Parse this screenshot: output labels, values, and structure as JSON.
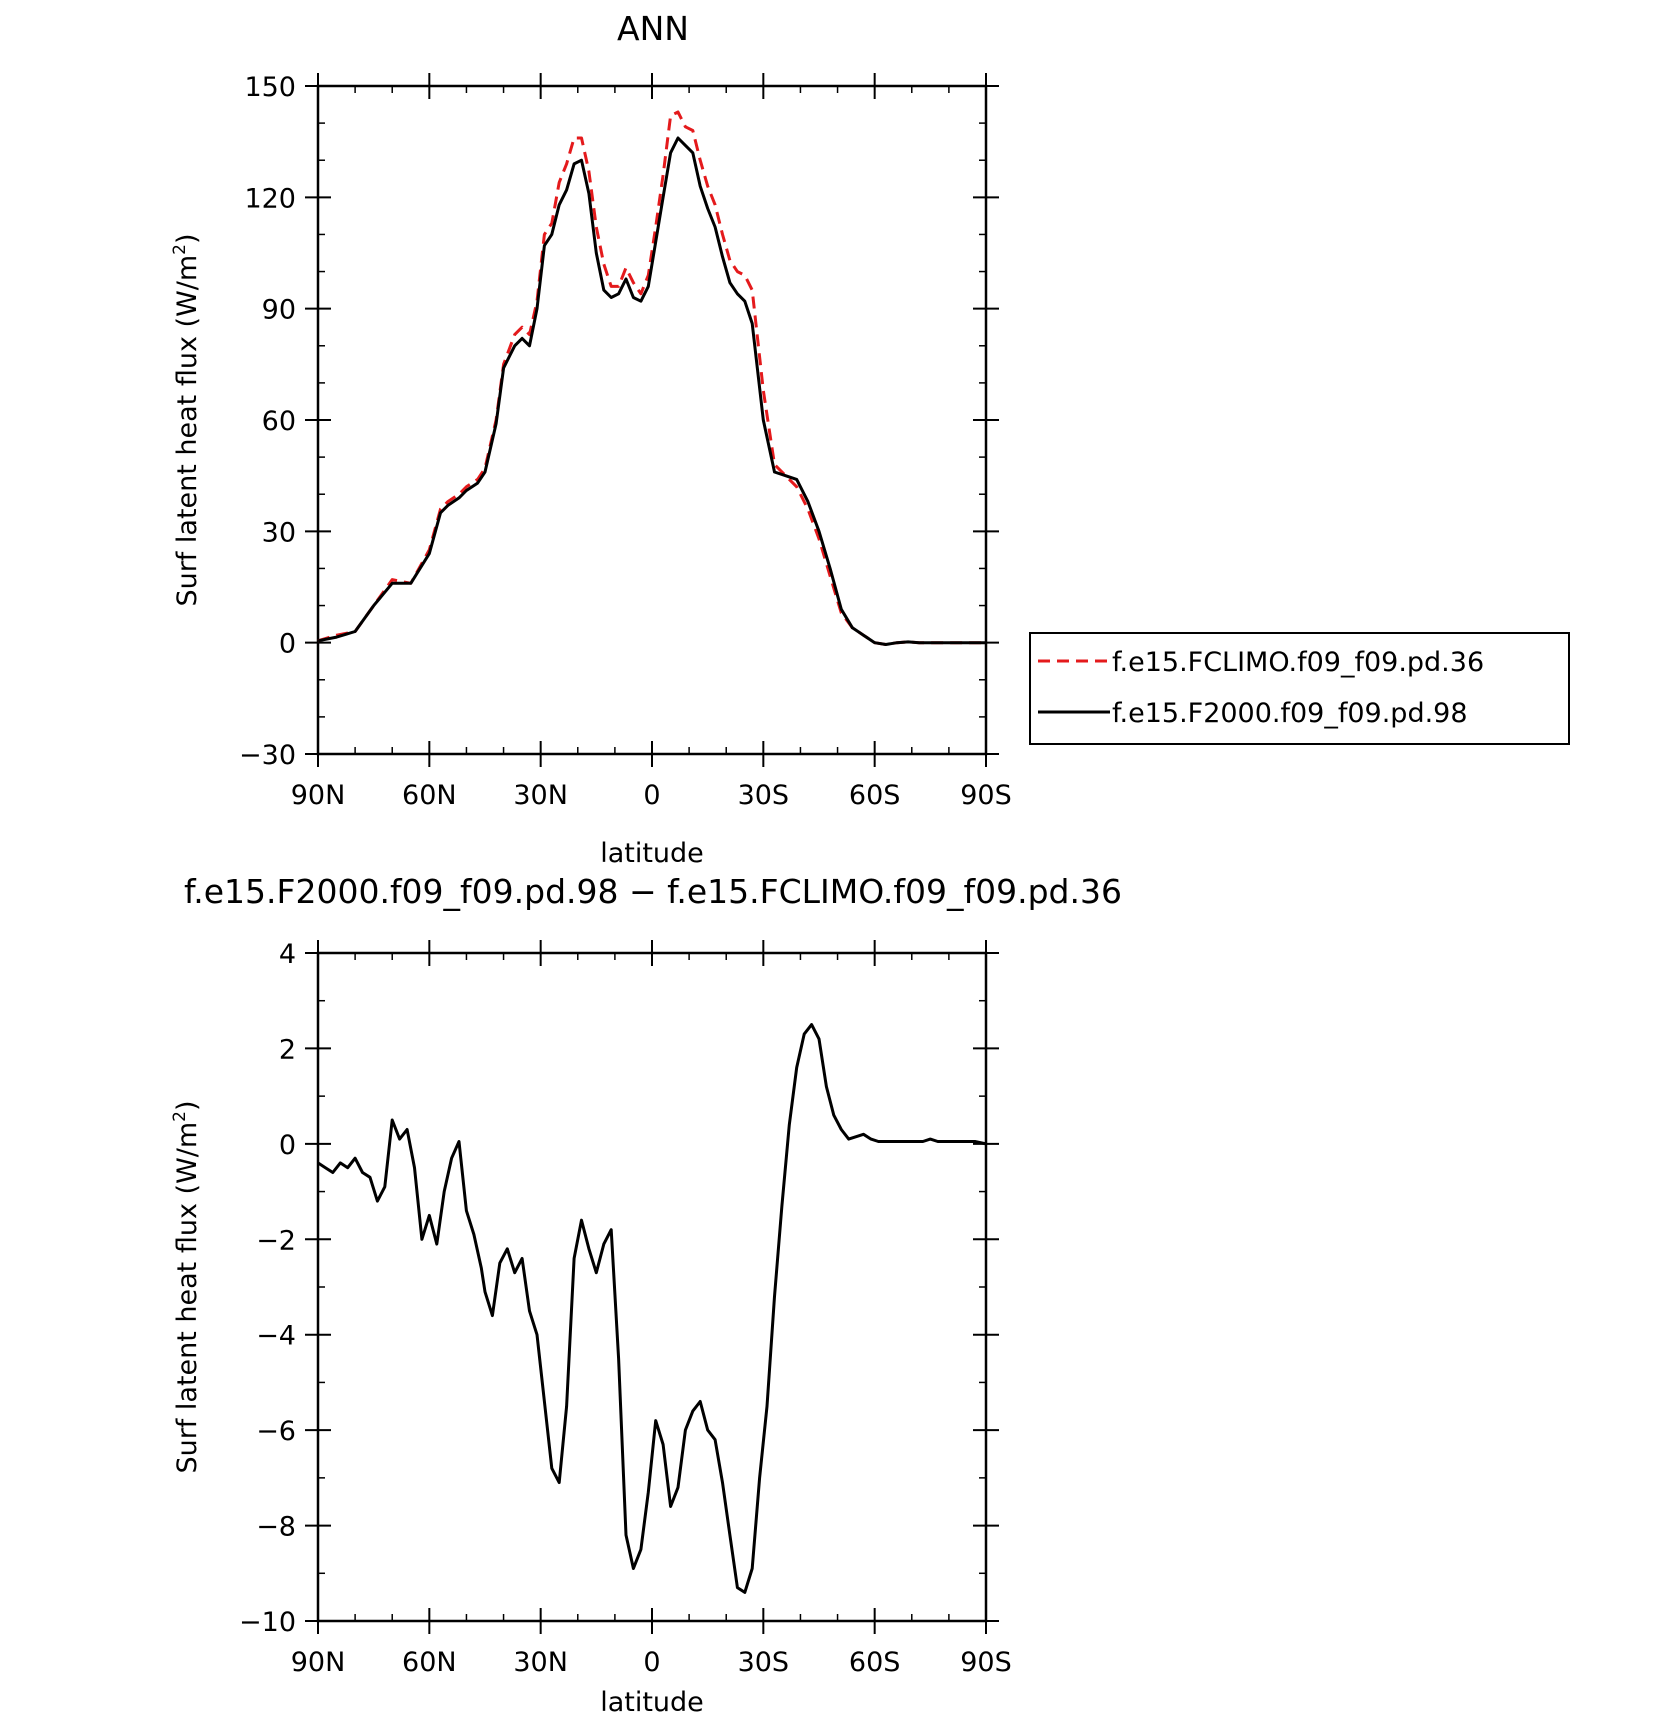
{
  "chart_data": [
    {
      "type": "line",
      "title": "ANN",
      "xlabel": "latitude",
      "ylabel": "Surf latent heat flux (W/m",
      "ylabel_sup": "2",
      "ylabel_close": ")",
      "xlim": [
        90,
        -90
      ],
      "ylim": [
        -30,
        150
      ],
      "xticks": [
        90,
        60,
        30,
        0,
        -30,
        -60,
        -90
      ],
      "xtick_labels": [
        "90N",
        "60N",
        "30N",
        "0",
        "30S",
        "60S",
        "90S"
      ],
      "yticks": [
        -30,
        0,
        30,
        60,
        90,
        120,
        150
      ],
      "ytick_labels": [
        "−30",
        "0",
        "30",
        "60",
        "90",
        "120",
        "150"
      ],
      "legend": "right",
      "x": [
        90,
        85,
        80,
        75,
        70,
        65,
        60,
        57,
        55,
        52,
        50,
        47,
        45,
        42,
        40,
        37,
        35,
        33,
        31,
        29,
        27,
        25,
        23,
        21,
        19,
        17,
        15,
        13,
        11,
        9,
        7,
        5,
        3,
        1,
        -1,
        -3,
        -5,
        -7,
        -9,
        -11,
        -13,
        -15,
        -17,
        -19,
        -21,
        -23,
        -25,
        -27,
        -30,
        -33,
        -36,
        -39,
        -42,
        -45,
        -48,
        -51,
        -54,
        -57,
        -60,
        -63,
        -66,
        -69,
        -72,
        -75,
        -78,
        -81,
        -84,
        -87,
        -90
      ],
      "series": [
        {
          "name": "f.e15.FCLIMO.f09_f09.pd.36",
          "color": "#e41a1c",
          "style": "dashed",
          "values": [
            0.5,
            2,
            3,
            10,
            17,
            16,
            25,
            36,
            38,
            40,
            42,
            44,
            47,
            60,
            75,
            83,
            85,
            83,
            92,
            110,
            113,
            124,
            129,
            136,
            136,
            127,
            112,
            102,
            96,
            96,
            101,
            97,
            94,
            99,
            112,
            126,
            142,
            143,
            139,
            138,
            130,
            123,
            118,
            110,
            103,
            100,
            99,
            95,
            68,
            48,
            45,
            42,
            36,
            28,
            18,
            8,
            4,
            2,
            0,
            -0.5,
            0,
            0.2,
            0,
            0,
            0,
            0,
            0,
            0,
            0
          ]
        },
        {
          "name": "f.e15.F2000.f09_f09.pd.98",
          "color": "#000000",
          "style": "solid",
          "values": [
            0.5,
            1.5,
            3,
            10,
            16,
            16,
            24,
            35,
            37,
            39,
            41,
            43,
            46,
            59,
            74,
            80,
            82,
            80,
            90,
            107,
            110,
            118,
            122,
            129,
            130,
            121,
            105,
            95,
            93,
            94,
            98,
            93,
            92,
            96,
            108,
            120,
            132,
            136,
            134,
            132,
            123,
            117,
            112,
            104,
            97,
            94,
            92,
            86,
            60,
            46,
            45,
            44,
            38,
            30,
            20,
            9,
            4,
            2,
            0,
            -0.5,
            0,
            0.2,
            0,
            0,
            0,
            0,
            0,
            0,
            0
          ]
        }
      ]
    },
    {
      "type": "line",
      "title": "f.e15.F2000.f09_f09.pd.98 − f.e15.FCLIMO.f09_f09.pd.36",
      "xlabel": "latitude",
      "ylabel": "Surf latent heat flux (W/m",
      "ylabel_sup": "2",
      "ylabel_close": ")",
      "xlim": [
        90,
        -90
      ],
      "ylim": [
        -10,
        4
      ],
      "xticks": [
        90,
        60,
        30,
        0,
        -30,
        -60,
        -90
      ],
      "xtick_labels": [
        "90N",
        "60N",
        "30N",
        "0",
        "30S",
        "60S",
        "90S"
      ],
      "yticks": [
        -10,
        -8,
        -6,
        -4,
        -2,
        0,
        2,
        4
      ],
      "ytick_labels": [
        "−10",
        "−8",
        "−6",
        "−4",
        "−2",
        "0",
        "2",
        "4"
      ],
      "x": [
        90,
        88,
        86,
        84,
        82,
        80,
        78,
        76,
        74,
        72,
        70,
        68,
        66,
        64,
        62,
        60,
        58,
        56,
        54,
        52,
        50,
        48,
        46,
        45,
        43,
        41,
        39,
        37,
        35,
        33,
        31,
        29,
        27,
        25,
        23,
        21,
        19,
        17,
        15,
        13,
        11,
        9,
        7,
        5,
        3,
        1,
        -1,
        -3,
        -5,
        -7,
        -9,
        -11,
        -13,
        -15,
        -17,
        -19,
        -21,
        -23,
        -25,
        -27,
        -29,
        -31,
        -33,
        -35,
        -37,
        -39,
        -41,
        -43,
        -45,
        -47,
        -49,
        -51,
        -53,
        -55,
        -57,
        -59,
        -61,
        -63,
        -65,
        -67,
        -69,
        -71,
        -73,
        -75,
        -77,
        -79,
        -81,
        -83,
        -85,
        -87,
        -90
      ],
      "series": [
        {
          "name": "",
          "color": "#000000",
          "style": "solid",
          "values": [
            -0.4,
            -0.5,
            -0.6,
            -0.4,
            -0.5,
            -0.3,
            -0.6,
            -0.7,
            -1.2,
            -0.9,
            0.5,
            0.1,
            0.3,
            -0.5,
            -2,
            -1.5,
            -2.1,
            -1.0,
            -0.3,
            0.05,
            -1.4,
            -1.9,
            -2.6,
            -3.1,
            -3.6,
            -2.5,
            -2.2,
            -2.7,
            -2.4,
            -3.5,
            -4.0,
            -5.4,
            -6.8,
            -7.1,
            -5.5,
            -2.4,
            -1.6,
            -2.2,
            -2.7,
            -2.1,
            -1.8,
            -4.5,
            -8.2,
            -8.9,
            -8.5,
            -7.3,
            -5.8,
            -6.3,
            -7.6,
            -7.2,
            -6.0,
            -5.6,
            -5.4,
            -6.0,
            -6.2,
            -7.1,
            -8.2,
            -9.3,
            -9.4,
            -8.9,
            -7.0,
            -5.5,
            -3.2,
            -1.3,
            0.4,
            1.6,
            2.3,
            2.5,
            2.2,
            1.2,
            0.6,
            0.3,
            0.1,
            0.15,
            0.2,
            0.1,
            0.05,
            0.05,
            0.05,
            0.05,
            0.05,
            0.05,
            0.05,
            0.1,
            0.05,
            0.05,
            0.05,
            0.05,
            0.05,
            0.05,
            0.0
          ]
        }
      ]
    }
  ]
}
